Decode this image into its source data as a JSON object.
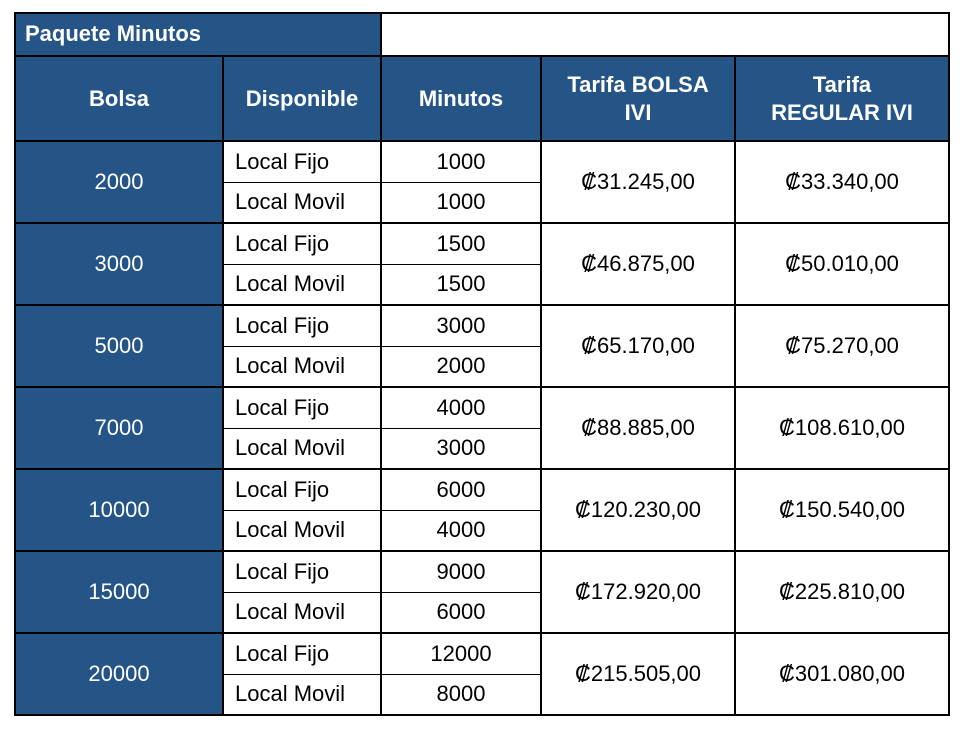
{
  "colors": {
    "header_bg": "#255487",
    "header_text": "#FFFFFF",
    "border": "#000000",
    "body_text": "#000000",
    "body_bg": "#FFFFFF"
  },
  "header": {
    "title": "Paquete Minutos",
    "columns": [
      "Bolsa",
      "Disponible",
      "Minutos",
      "Tarifa BOLSA\nIVI",
      "Tarifa\nREGULAR IVI"
    ]
  },
  "chart_data": {
    "type": "table",
    "title": "Paquete Minutos",
    "columns": [
      "Bolsa",
      "Disponible",
      "Minutos",
      "Tarifa BOLSA IVI",
      "Tarifa REGULAR IVI"
    ],
    "groups": [
      {
        "bolsa": "2000",
        "rows": [
          {
            "disponible": "Local Fijo",
            "minutos": "1000"
          },
          {
            "disponible": "Local Movil",
            "minutos": "1000"
          }
        ],
        "tarifa_bolsa_ivi": "₡31.245,00",
        "tarifa_regular_ivi": "₡33.340,00"
      },
      {
        "bolsa": "3000",
        "rows": [
          {
            "disponible": "Local Fijo",
            "minutos": "1500"
          },
          {
            "disponible": "Local Movil",
            "minutos": "1500"
          }
        ],
        "tarifa_bolsa_ivi": "₡46.875,00",
        "tarifa_regular_ivi": "₡50.010,00"
      },
      {
        "bolsa": "5000",
        "rows": [
          {
            "disponible": "Local Fijo",
            "minutos": "3000"
          },
          {
            "disponible": "Local Movil",
            "minutos": "2000"
          }
        ],
        "tarifa_bolsa_ivi": "₡65.170,00",
        "tarifa_regular_ivi": "₡75.270,00"
      },
      {
        "bolsa": "7000",
        "rows": [
          {
            "disponible": "Local Fijo",
            "minutos": "4000"
          },
          {
            "disponible": "Local Movil",
            "minutos": "3000"
          }
        ],
        "tarifa_bolsa_ivi": "₡88.885,00",
        "tarifa_regular_ivi": "₡108.610,00"
      },
      {
        "bolsa": "10000",
        "rows": [
          {
            "disponible": "Local Fijo",
            "minutos": "6000"
          },
          {
            "disponible": "Local Movil",
            "minutos": "4000"
          }
        ],
        "tarifa_bolsa_ivi": "₡120.230,00",
        "tarifa_regular_ivi": "₡150.540,00"
      },
      {
        "bolsa": "15000",
        "rows": [
          {
            "disponible": "Local Fijo",
            "minutos": "9000"
          },
          {
            "disponible": "Local Movil",
            "minutos": "6000"
          }
        ],
        "tarifa_bolsa_ivi": "₡172.920,00",
        "tarifa_regular_ivi": "₡225.810,00"
      },
      {
        "bolsa": "20000",
        "rows": [
          {
            "disponible": "Local Fijo",
            "minutos": "12000"
          },
          {
            "disponible": "Local Movil",
            "minutos": "8000"
          }
        ],
        "tarifa_bolsa_ivi": "₡215.505,00",
        "tarifa_regular_ivi": "₡301.080,00"
      }
    ]
  }
}
